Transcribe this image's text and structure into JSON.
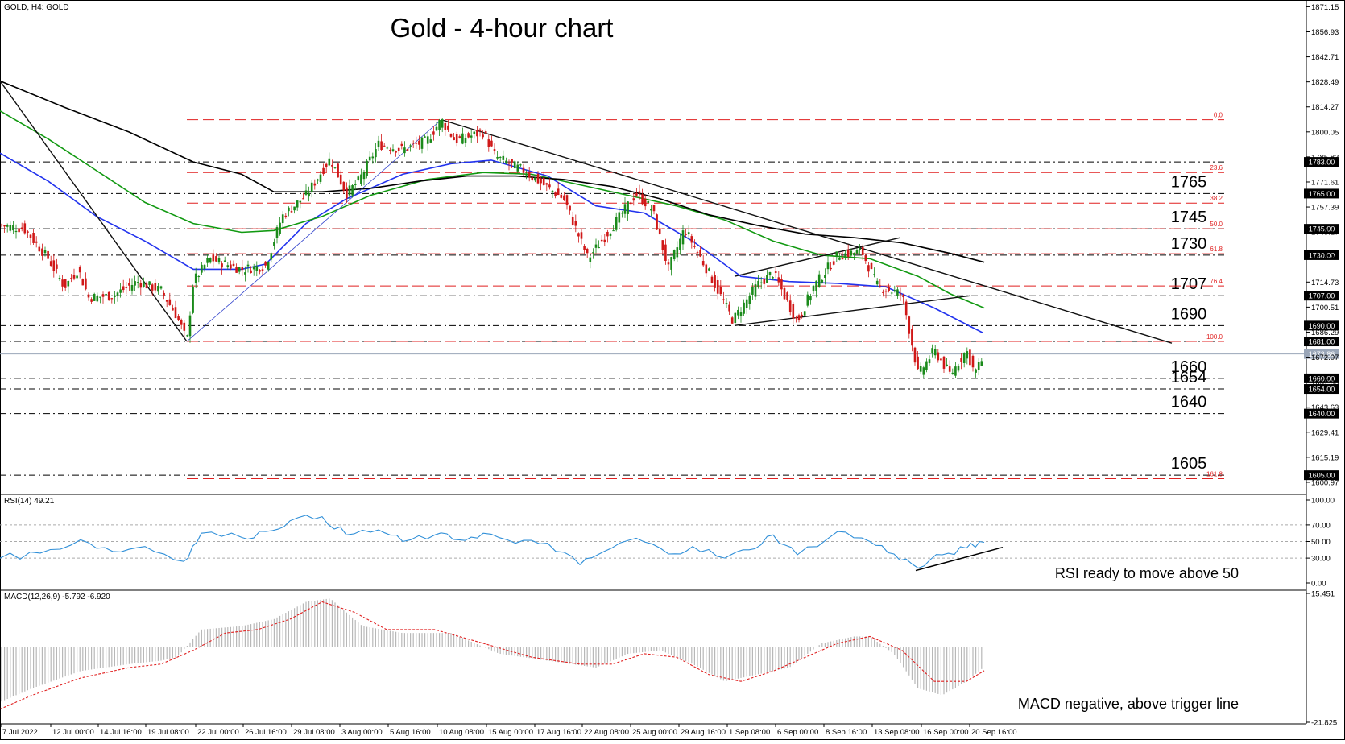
{
  "header": {
    "symbol_label": "GOLD, H4:  GOLD",
    "title": "Gold - 4-hour chart"
  },
  "chart_data": [
    {
      "type": "candlestick",
      "symbol": "GOLD",
      "timeframe": "H4",
      "title": "Gold - 4-hour chart",
      "ylim": [
        1595.0,
        1875.0
      ],
      "price_ticks": [
        "1871.15",
        "1856.93",
        "1842.71",
        "1828.49",
        "1814.27",
        "1800.05",
        "1785.83",
        "1771.61",
        "1757.39",
        "1743.17",
        "1728.95",
        "1714.73",
        "1700.51",
        "1686.29",
        "1672.07",
        "1657.85",
        "1643.63",
        "1629.41",
        "1615.19",
        "1600.97"
      ],
      "x_labels": [
        "7 Jul 2022",
        "12 Jul 00:00",
        "14 Jul 16:00",
        "19 Jul 08:00",
        "22 Jul 00:00",
        "26 Jul 16:00",
        "29 Jul 08:00",
        "3 Aug 00:00",
        "5 Aug 16:00",
        "10 Aug 08:00",
        "15 Aug 00:00",
        "17 Aug 16:00",
        "22 Aug 08:00",
        "25 Aug 00:00",
        "29 Aug 16:00",
        "1 Sep 08:00",
        "6 Sep 00:00",
        "8 Sep 16:00",
        "13 Sep 08:00",
        "16 Sep 00:00",
        "20 Sep 16:00"
      ],
      "current_price": "1673.86",
      "price_path_approx": [
        [
          0,
          1747
        ],
        [
          30,
          1745
        ],
        [
          60,
          1728
        ],
        [
          80,
          1712
        ],
        [
          97,
          1722
        ],
        [
          110,
          1706
        ],
        [
          140,
          1707
        ],
        [
          170,
          1715
        ],
        [
          200,
          1710
        ],
        [
          220,
          1695
        ],
        [
          232,
          1681
        ],
        [
          240,
          1715
        ],
        [
          260,
          1728
        ],
        [
          300,
          1722
        ],
        [
          330,
          1724
        ],
        [
          350,
          1752
        ],
        [
          380,
          1764
        ],
        [
          410,
          1785
        ],
        [
          430,
          1765
        ],
        [
          445,
          1772
        ],
        [
          470,
          1793
        ],
        [
          500,
          1790
        ],
        [
          530,
          1795
        ],
        [
          548,
          1807
        ],
        [
          565,
          1795
        ],
        [
          600,
          1800
        ],
        [
          615,
          1786
        ],
        [
          650,
          1778
        ],
        [
          700,
          1762
        ],
        [
          730,
          1728
        ],
        [
          760,
          1746
        ],
        [
          790,
          1765
        ],
        [
          810,
          1756
        ],
        [
          830,
          1722
        ],
        [
          850,
          1745
        ],
        [
          880,
          1720
        ],
        [
          910,
          1693
        ],
        [
          940,
          1713
        ],
        [
          960,
          1720
        ],
        [
          990,
          1692
        ],
        [
          1010,
          1712
        ],
        [
          1040,
          1730
        ],
        [
          1070,
          1732
        ],
        [
          1090,
          1712
        ],
        [
          1120,
          1708
        ],
        [
          1140,
          1662
        ],
        [
          1160,
          1676
        ],
        [
          1180,
          1662
        ],
        [
          1200,
          1676
        ],
        [
          1210,
          1663
        ],
        [
          1222,
          1673
        ]
      ],
      "moving_averages": [
        {
          "name": "blue",
          "color": "#2233ee",
          "path_approx": [
            [
              0,
              1788
            ],
            [
              60,
              1772
            ],
            [
              120,
              1752
            ],
            [
              180,
              1738
            ],
            [
              240,
              1722
            ],
            [
              300,
              1722
            ],
            [
              330,
              1725
            ],
            [
              380,
              1748
            ],
            [
              430,
              1762
            ],
            [
              500,
              1776
            ],
            [
              560,
              1782
            ],
            [
              610,
              1784
            ],
            [
              680,
              1775
            ],
            [
              740,
              1758
            ],
            [
              800,
              1754
            ],
            [
              860,
              1738
            ],
            [
              920,
              1718
            ],
            [
              980,
              1715
            ],
            [
              1040,
              1714
            ],
            [
              1100,
              1712
            ],
            [
              1160,
              1700
            ],
            [
              1220,
              1686
            ]
          ]
        },
        {
          "name": "green",
          "color": "#119911",
          "path_approx": [
            [
              0,
              1812
            ],
            [
              60,
              1796
            ],
            [
              120,
              1778
            ],
            [
              180,
              1760
            ],
            [
              240,
              1748
            ],
            [
              300,
              1743
            ],
            [
              340,
              1744
            ],
            [
              400,
              1752
            ],
            [
              460,
              1764
            ],
            [
              530,
              1773
            ],
            [
              600,
              1777
            ],
            [
              660,
              1776
            ],
            [
              720,
              1770
            ],
            [
              780,
              1764
            ],
            [
              840,
              1758
            ],
            [
              900,
              1750
            ],
            [
              960,
              1738
            ],
            [
              1020,
              1730
            ],
            [
              1080,
              1728
            ],
            [
              1140,
              1718
            ],
            [
              1180,
              1708
            ],
            [
              1222,
              1700
            ]
          ]
        },
        {
          "name": "black",
          "color": "#000000",
          "path_approx": [
            [
              0,
              1829
            ],
            [
              80,
              1814
            ],
            [
              160,
              1800
            ],
            [
              240,
              1783
            ],
            [
              300,
              1776
            ],
            [
              340,
              1766
            ],
            [
              400,
              1766
            ],
            [
              460,
              1768
            ],
            [
              520,
              1772
            ],
            [
              580,
              1775
            ],
            [
              640,
              1775
            ],
            [
              700,
              1773
            ],
            [
              760,
              1769
            ],
            [
              820,
              1762
            ],
            [
              880,
              1753
            ],
            [
              940,
              1747
            ],
            [
              1000,
              1742
            ],
            [
              1060,
              1740
            ],
            [
              1120,
              1737
            ],
            [
              1180,
              1731
            ],
            [
              1222,
              1726
            ]
          ]
        }
      ],
      "horizontal_levels": [
        {
          "label": "1765",
          "value": 1765.0,
          "box": "1765.00"
        },
        {
          "label": "1745",
          "value": 1745.0,
          "box": "1745.00"
        },
        {
          "label": "1730",
          "value": 1730.0,
          "box": "1730.00"
        },
        {
          "label": "1707",
          "value": 1707.0,
          "box": "1707.00"
        },
        {
          "label": "1690",
          "value": 1690.0,
          "box": "1690.00"
        },
        {
          "label": "1660",
          "value": 1660.0,
          "box": "1660.00"
        },
        {
          "label": "1654",
          "value": 1654.0,
          "box": "1654.00"
        },
        {
          "label": "1640",
          "value": 1640.0,
          "box": "1640.00"
        },
        {
          "label": "1605",
          "value": 1605.0,
          "box": "1605.00"
        },
        {
          "label": "",
          "value": 1783.0,
          "box": "1783.00"
        },
        {
          "label": "",
          "value": 1681.0,
          "box": "1681.00"
        }
      ],
      "fibonacci_levels": [
        {
          "ratio": "0.0",
          "value": 1807.0
        },
        {
          "ratio": "23.6",
          "value": 1777.0
        },
        {
          "ratio": "38.2",
          "value": 1759.6
        },
        {
          "ratio": "50.0",
          "value": 1745.0
        },
        {
          "ratio": "61.8",
          "value": 1730.8
        },
        {
          "ratio": "76.4",
          "value": 1712.5
        },
        {
          "ratio": "100.0",
          "value": 1681.0
        },
        {
          "ratio": "161.8",
          "value": 1603.0
        }
      ],
      "trendlines": [
        {
          "from": [
            "GOLD start",
            1829
          ],
          "to": [
            "20 Sep 16:00",
            1681
          ],
          "color": "black"
        },
        {
          "from": [
            "10 Aug 08:00",
            1807
          ],
          "to": [
            "20 Sep 16:00",
            1680
          ],
          "color": "black"
        },
        {
          "from": [
            "1 Sep 08:00",
            1718
          ],
          "to": [
            "13 Sep 08:00",
            1740
          ],
          "color": "black"
        },
        {
          "from": [
            "1 Sep 08:00",
            1690
          ],
          "to": [
            "13 Sep 08:00",
            1707
          ],
          "color": "black"
        },
        {
          "from": [
            "19 Jul 08:00",
            1681
          ],
          "to": [
            "10 Aug 08:00",
            1807
          ],
          "color": "blue"
        }
      ]
    },
    {
      "type": "line",
      "name": "RSI",
      "label": "RSI(14) 49.21",
      "ylim": [
        0,
        100
      ],
      "ticks": [
        "100.00",
        "70.00",
        "50.00",
        "30.00",
        "0.00"
      ],
      "annotation": "RSI ready to move above 50",
      "series_approx": [
        [
          0,
          30
        ],
        [
          50,
          36
        ],
        [
          100,
          52
        ],
        [
          140,
          38
        ],
        [
          180,
          44
        ],
        [
          228,
          26
        ],
        [
          250,
          60
        ],
        [
          300,
          55
        ],
        [
          330,
          62
        ],
        [
          360,
          75
        ],
        [
          400,
          80
        ],
        [
          430,
          58
        ],
        [
          470,
          64
        ],
        [
          500,
          50
        ],
        [
          540,
          58
        ],
        [
          570,
          52
        ],
        [
          600,
          60
        ],
        [
          640,
          48
        ],
        [
          680,
          48
        ],
        [
          720,
          22
        ],
        [
          750,
          38
        ],
        [
          790,
          54
        ],
        [
          830,
          35
        ],
        [
          860,
          44
        ],
        [
          900,
          30
        ],
        [
          930,
          40
        ],
        [
          960,
          58
        ],
        [
          990,
          34
        ],
        [
          1040,
          62
        ],
        [
          1080,
          50
        ],
        [
          1110,
          35
        ],
        [
          1140,
          18
        ],
        [
          1170,
          34
        ],
        [
          1200,
          42
        ],
        [
          1222,
          49
        ]
      ],
      "support_line": [
        [
          1137,
          15
        ],
        [
          1245,
          43
        ]
      ]
    },
    {
      "type": "histogram+line",
      "name": "MACD",
      "label": "MACD(12,26,9) -5.792 -6.920",
      "ylim": [
        -21.825,
        15.451
      ],
      "ticks": [
        "15.451",
        "-21.825"
      ],
      "annotation": "MACD negative, above trigger line",
      "histogram_approx": [
        [
          0,
          -16
        ],
        [
          40,
          -12
        ],
        [
          100,
          -7
        ],
        [
          160,
          -5
        ],
        [
          200,
          -4
        ],
        [
          220,
          -3
        ],
        [
          250,
          5
        ],
        [
          300,
          6
        ],
        [
          340,
          8
        ],
        [
          380,
          13
        ],
        [
          410,
          14
        ],
        [
          450,
          6
        ],
        [
          500,
          4
        ],
        [
          560,
          4
        ],
        [
          620,
          -2
        ],
        [
          680,
          -4
        ],
        [
          740,
          -6
        ],
        [
          780,
          -2
        ],
        [
          820,
          -1
        ],
        [
          860,
          -5
        ],
        [
          900,
          -10
        ],
        [
          940,
          -8
        ],
        [
          980,
          -6
        ],
        [
          1020,
          1
        ],
        [
          1060,
          3
        ],
        [
          1080,
          3
        ],
        [
          1110,
          -2
        ],
        [
          1140,
          -12
        ],
        [
          1170,
          -14
        ],
        [
          1200,
          -10
        ],
        [
          1222,
          -5.8
        ]
      ],
      "signal_approx": [
        [
          0,
          -18
        ],
        [
          40,
          -14
        ],
        [
          100,
          -9
        ],
        [
          160,
          -6
        ],
        [
          200,
          -5
        ],
        [
          240,
          -1
        ],
        [
          280,
          4
        ],
        [
          320,
          5
        ],
        [
          360,
          8
        ],
        [
          400,
          13
        ],
        [
          440,
          10
        ],
        [
          480,
          5
        ],
        [
          540,
          5
        ],
        [
          600,
          1
        ],
        [
          660,
          -3
        ],
        [
          720,
          -5
        ],
        [
          760,
          -5
        ],
        [
          800,
          -2
        ],
        [
          840,
          -3
        ],
        [
          880,
          -8
        ],
        [
          920,
          -10
        ],
        [
          960,
          -7
        ],
        [
          1000,
          -3
        ],
        [
          1040,
          1
        ],
        [
          1080,
          3
        ],
        [
          1120,
          -1
        ],
        [
          1160,
          -10
        ],
        [
          1200,
          -10
        ],
        [
          1222,
          -6.9
        ]
      ]
    }
  ]
}
